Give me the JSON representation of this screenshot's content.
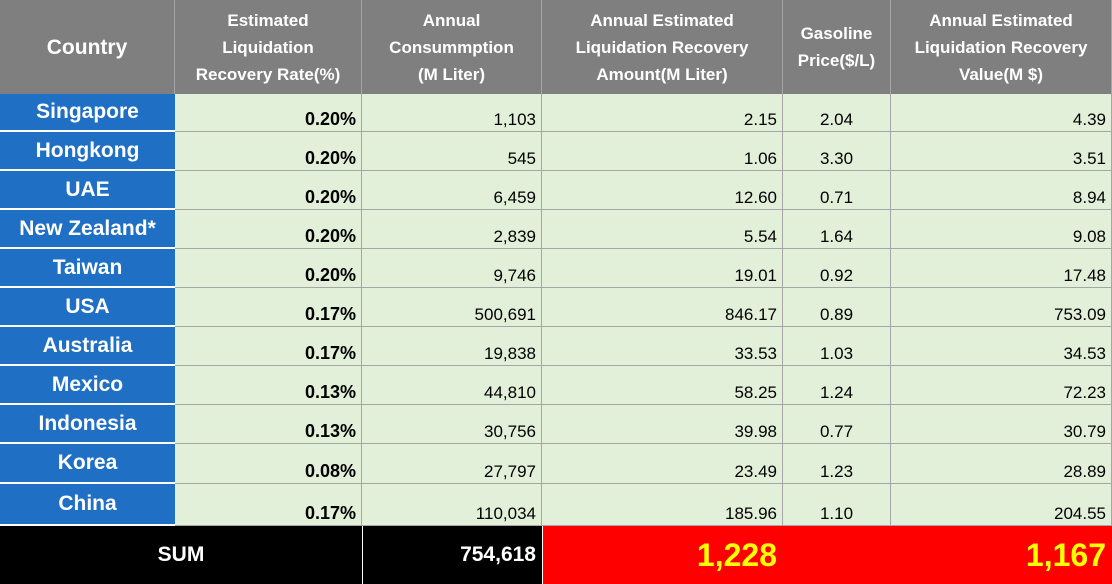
{
  "chart_data": {
    "type": "table",
    "columns": [
      "Country",
      "Estimated Liquidation Recovery Rate(%)",
      "Annual Consummption (M Liter)",
      "Annual Estimated Liquidation Recovery Amount(M Liter)",
      "Gasoline Price($/L)",
      "Annual Estimated Liquidation Recovery Value(M $)"
    ],
    "header_lines": [
      [
        "Country"
      ],
      [
        "Estimated",
        "Liquidation",
        "Recovery Rate(%)"
      ],
      [
        "Annual",
        "Consummption",
        "(M Liter)"
      ],
      [
        "Annual Estimated",
        "Liquidation Recovery",
        "Amount(M Liter)"
      ],
      [
        "Gasoline",
        "Price($/L)"
      ],
      [
        "Annual Estimated",
        "Liquidation Recovery",
        "Value(M $)"
      ]
    ],
    "rows": [
      [
        "Singapore",
        "0.20%",
        "1,103",
        "2.15",
        "2.04",
        "4.39"
      ],
      [
        "Hongkong",
        "0.20%",
        "545",
        "1.06",
        "3.30",
        "3.51"
      ],
      [
        "UAE",
        "0.20%",
        "6,459",
        "12.60",
        "0.71",
        "8.94"
      ],
      [
        "New Zealand*",
        "0.20%",
        "2,839",
        "5.54",
        "1.64",
        "9.08"
      ],
      [
        "Taiwan",
        "0.20%",
        "9,746",
        "19.01",
        "0.92",
        "17.48"
      ],
      [
        "USA",
        "0.17%",
        "500,691",
        "846.17",
        "0.89",
        "753.09"
      ],
      [
        "Australia",
        "0.17%",
        "19,838",
        "33.53",
        "1.03",
        "34.53"
      ],
      [
        "Mexico",
        "0.13%",
        "44,810",
        "58.25",
        "1.24",
        "72.23"
      ],
      [
        "Indonesia",
        "0.13%",
        "30,756",
        "39.98",
        "0.77",
        "30.79"
      ],
      [
        "Korea",
        "0.08%",
        "27,797",
        "23.49",
        "1.23",
        "28.89"
      ],
      [
        "China",
        "0.17%",
        "110,034",
        "185.96",
        "1.10",
        "204.55"
      ]
    ],
    "sum_row": {
      "label": "SUM",
      "consumption": "754,618",
      "recovery_amount": "1,228",
      "recovery_value": "1,167"
    },
    "colors": {
      "header_bg": "#7f7f7f",
      "country_bg": "#1f6fc5",
      "data_bg": "#e2efd9",
      "sum_bg": "#000000",
      "highlight_bg": "#ff0000",
      "highlight_text": "#ffff00"
    }
  }
}
